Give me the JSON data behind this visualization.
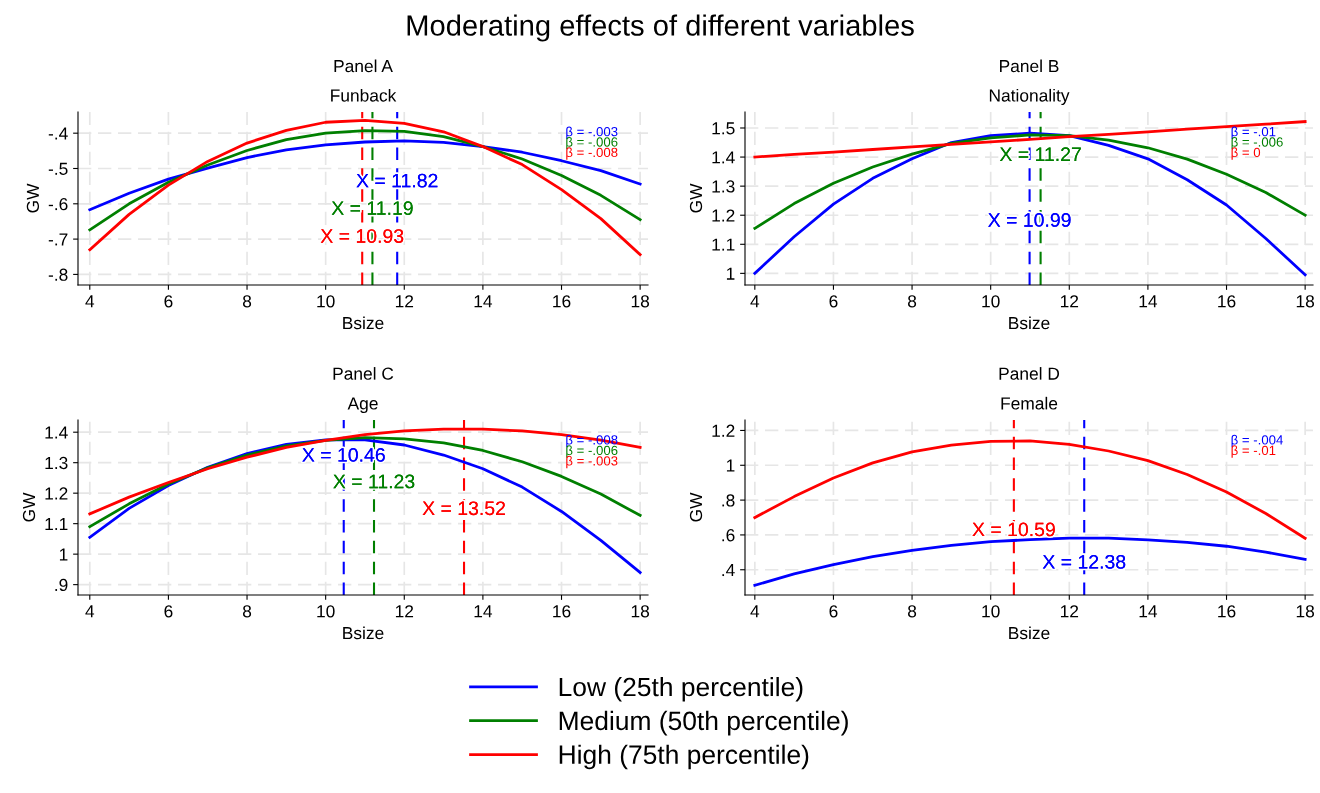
{
  "chart_data": [
    {
      "type": "other",
      "title": "Moderating effects of different variables"
    },
    {
      "type": "line",
      "title": "Panel A",
      "subtitle": "Funback",
      "xlabel": "Bsize",
      "ylabel": "GW",
      "x": [
        4,
        5,
        6,
        7,
        8,
        9,
        10,
        11,
        12,
        13,
        14,
        15,
        16,
        17,
        18
      ],
      "series": [
        {
          "name": "Low (25th percentile)",
          "color": "#0000ff",
          "values": [
            -0.617,
            -0.57,
            -0.53,
            -0.499,
            -0.469,
            -0.447,
            -0.433,
            -0.425,
            -0.422,
            -0.426,
            -0.438,
            -0.454,
            -0.478,
            -0.506,
            -0.544
          ]
        },
        {
          "name": "Medium (50th percentile)",
          "color": "#007f00",
          "values": [
            -0.674,
            -0.6,
            -0.539,
            -0.49,
            -0.449,
            -0.418,
            -0.4,
            -0.393,
            -0.395,
            -0.41,
            -0.438,
            -0.473,
            -0.52,
            -0.576,
            -0.645
          ]
        },
        {
          "name": "High (75th percentile)",
          "color": "#ff0000",
          "values": [
            -0.73,
            -0.63,
            -0.547,
            -0.48,
            -0.428,
            -0.392,
            -0.369,
            -0.364,
            -0.372,
            -0.396,
            -0.438,
            -0.489,
            -0.56,
            -0.642,
            -0.744
          ]
        }
      ],
      "xlim": [
        3.7,
        18.2
      ],
      "xticks": [
        4,
        6,
        8,
        10,
        12,
        14,
        16,
        18
      ],
      "ylim": [
        -0.83,
        -0.34
      ],
      "yticks": [
        {
          "value": -0.8,
          "label": "-.8"
        },
        {
          "value": -0.7,
          "label": "-.7"
        },
        {
          "value": -0.6,
          "label": "-.6"
        },
        {
          "value": -0.5,
          "label": "-.5"
        },
        {
          "value": -0.4,
          "label": "-.4"
        }
      ],
      "ref_lines": [
        {
          "axis": "x",
          "value": 11.82,
          "color": "#0000ff",
          "line_style": "dashed"
        },
        {
          "axis": "x",
          "value": 11.19,
          "color": "#007f00",
          "line_style": "dashed"
        },
        {
          "axis": "x",
          "value": 10.93,
          "color": "#ff0000",
          "line_style": "dashed"
        }
      ],
      "annotations": [
        {
          "text": "X = 11.82",
          "x": 11.82,
          "y": -0.539
        },
        {
          "text": "X = 11.19",
          "x": 11.19,
          "y": -0.617
        },
        {
          "text": "X = 10.93",
          "x": 10.93,
          "y": -0.696
        },
        "β = -.003",
        "β = -.006",
        "β = -.008"
      ],
      "grid": true,
      "legend": "bottom",
      "line_style": "solid",
      "marker": "none"
    },
    {
      "type": "line",
      "title": "Panel B",
      "subtitle": "Nationality",
      "xlabel": "Bsize",
      "ylabel": "GW",
      "x": [
        4,
        5,
        6,
        7,
        8,
        9,
        10,
        11,
        12,
        13,
        14,
        15,
        16,
        17,
        18
      ],
      "series": [
        {
          "color": "#0000ff",
          "values": [
            1.0,
            1.126,
            1.238,
            1.327,
            1.394,
            1.45,
            1.474,
            1.482,
            1.474,
            1.44,
            1.394,
            1.322,
            1.235,
            1.12,
            0.995
          ]
        },
        {
          "color": "#007f00",
          "values": [
            1.155,
            1.24,
            1.31,
            1.366,
            1.41,
            1.447,
            1.466,
            1.476,
            1.474,
            1.458,
            1.432,
            1.393,
            1.341,
            1.278,
            1.2
          ]
        },
        {
          "color": "#ff0000",
          "values": [
            1.4,
            1.409,
            1.417,
            1.426,
            1.435,
            1.444,
            1.452,
            1.461,
            1.47,
            1.478,
            1.487,
            1.496,
            1.505,
            1.513,
            1.522
          ]
        }
      ],
      "xlim": [
        3.75,
        18.2
      ],
      "xticks": [
        4,
        6,
        8,
        10,
        12,
        14,
        16,
        18
      ],
      "ylim": [
        0.96,
        1.555
      ],
      "yticks": [
        1,
        1.1,
        1.2,
        1.3,
        1.4,
        1.5
      ],
      "ref_lines": [
        {
          "axis": "x",
          "value": 10.99,
          "color": "#0000ff",
          "line_style": "dashed"
        },
        {
          "axis": "x",
          "value": 11.27,
          "color": "#007f00",
          "line_style": "dashed"
        }
      ],
      "annotations": [
        {
          "text": "X = 10.99",
          "x": 10.99,
          "y": 1.178
        },
        {
          "text": "X = 11.27",
          "x": 11.27,
          "y": 1.404
        },
        "β = -.01",
        "β = -.006",
        "β = 0"
      ],
      "grid": true,
      "line_style": "solid",
      "marker": "none"
    },
    {
      "type": "line",
      "title": "Panel C",
      "subtitle": "Age",
      "xlabel": "Bsize",
      "ylabel": "GW",
      "x": [
        4,
        5,
        6,
        7,
        8,
        9,
        10,
        11,
        12,
        13,
        14,
        15,
        16,
        17,
        18
      ],
      "series": [
        {
          "color": "#0000ff",
          "values": [
            1.055,
            1.15,
            1.225,
            1.285,
            1.33,
            1.36,
            1.375,
            1.375,
            1.358,
            1.325,
            1.28,
            1.22,
            1.14,
            1.045,
            0.94
          ]
        },
        {
          "color": "#007f00",
          "values": [
            1.09,
            1.165,
            1.23,
            1.283,
            1.325,
            1.355,
            1.373,
            1.382,
            1.378,
            1.365,
            1.34,
            1.303,
            1.255,
            1.197,
            1.127
          ]
        },
        {
          "color": "#ff0000",
          "values": [
            1.132,
            1.187,
            1.235,
            1.28,
            1.318,
            1.35,
            1.373,
            1.392,
            1.404,
            1.41,
            1.41,
            1.404,
            1.392,
            1.374,
            1.35
          ]
        }
      ],
      "xlim": [
        3.7,
        18.2
      ],
      "xticks": [
        4,
        6,
        8,
        10,
        12,
        14,
        16,
        18
      ],
      "ylim": [
        0.866,
        1.44
      ],
      "yticks": [
        {
          "value": 0.9,
          "label": ".9"
        },
        1,
        1.1,
        1.2,
        1.3,
        1.4
      ],
      "ref_lines": [
        {
          "axis": "x",
          "value": 10.46,
          "color": "#0000ff",
          "line_style": "dashed"
        },
        {
          "axis": "x",
          "value": 11.23,
          "color": "#007f00",
          "line_style": "dashed"
        },
        {
          "axis": "x",
          "value": 13.52,
          "color": "#ff0000",
          "line_style": "dashed"
        }
      ],
      "annotations": [
        {
          "text": "X = 10.46",
          "x": 10.46,
          "y": 1.32
        },
        {
          "text": "X = 11.23",
          "x": 11.23,
          "y": 1.233
        },
        {
          "text": "X = 13.52",
          "x": 13.52,
          "y": 1.145
        },
        "β = -.008",
        "β = -.006",
        "β = -.003"
      ],
      "grid": true,
      "line_style": "solid",
      "marker": "none"
    },
    {
      "type": "line",
      "title": "Panel D",
      "subtitle": "Female",
      "xlabel": "Bsize",
      "ylabel": "GW",
      "x": [
        4,
        5,
        6,
        7,
        8,
        9,
        10,
        11,
        12,
        13,
        14,
        15,
        16,
        17,
        18
      ],
      "series": [
        {
          "color": "#0000ff",
          "values": [
            0.311,
            0.376,
            0.43,
            0.475,
            0.511,
            0.54,
            0.561,
            0.573,
            0.581,
            0.581,
            0.571,
            0.557,
            0.535,
            0.501,
            0.46
          ]
        },
        {
          "color": "#ff0000",
          "values": [
            0.7,
            0.82,
            0.927,
            1.014,
            1.077,
            1.116,
            1.137,
            1.14,
            1.12,
            1.082,
            1.027,
            0.947,
            0.846,
            0.723,
            0.581
          ]
        }
      ],
      "xlim": [
        3.75,
        18.2
      ],
      "xticks": [
        4,
        6,
        8,
        10,
        12,
        14,
        16,
        18
      ],
      "ylim": [
        0.255,
        1.26
      ],
      "yticks": [
        {
          "value": 0.4,
          "label": ".4"
        },
        {
          "value": 0.6,
          "label": ".6"
        },
        {
          "value": 0.8,
          "label": ".8"
        },
        1,
        {
          "value": 1.2,
          "label": "1.2"
        }
      ],
      "ref_lines": [
        {
          "axis": "x",
          "value": 12.38,
          "color": "#0000ff",
          "line_style": "dashed"
        },
        {
          "axis": "x",
          "value": 10.59,
          "color": "#ff0000",
          "line_style": "dashed"
        }
      ],
      "annotations": [
        {
          "text": "X = 12.38",
          "x": 12.38,
          "y": 0.436
        },
        {
          "text": "X = 10.59",
          "x": 10.59,
          "y": 0.622
        },
        "β = -.004",
        "β = -.01"
      ],
      "grid": true,
      "line_style": "solid",
      "marker": "none"
    }
  ]
}
